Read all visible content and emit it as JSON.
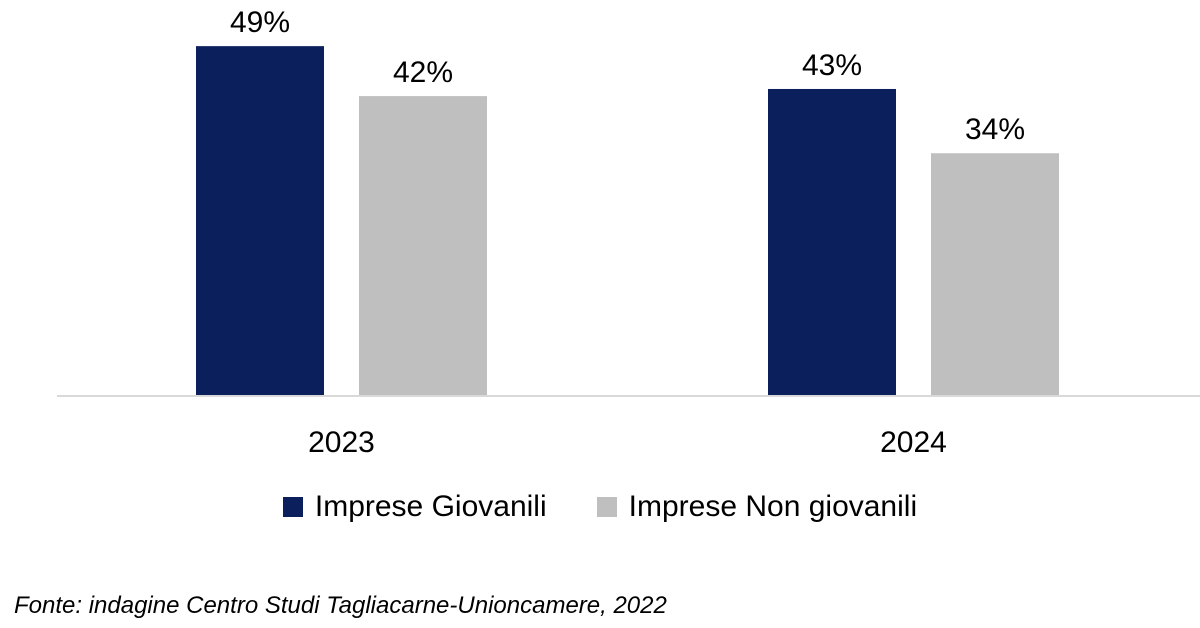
{
  "chart_data": {
    "type": "bar",
    "categories": [
      "2023",
      "2024"
    ],
    "series": [
      {
        "name": "Imprese Giovanili",
        "values": [
          49,
          43
        ],
        "labels": [
          "49%",
          "43%"
        ],
        "color": "#0b1f5c"
      },
      {
        "name": "Imprese Non giovanili",
        "values": [
          42,
          34
        ],
        "labels": [
          "42%",
          "34%"
        ],
        "color": "#bfbfbf"
      }
    ],
    "ylim": [
      0,
      50
    ],
    "grid": false,
    "legend_position": "bottom"
  },
  "source": "Fonte: indagine Centro Studi Tagliacarne-Unioncamere, 2022"
}
